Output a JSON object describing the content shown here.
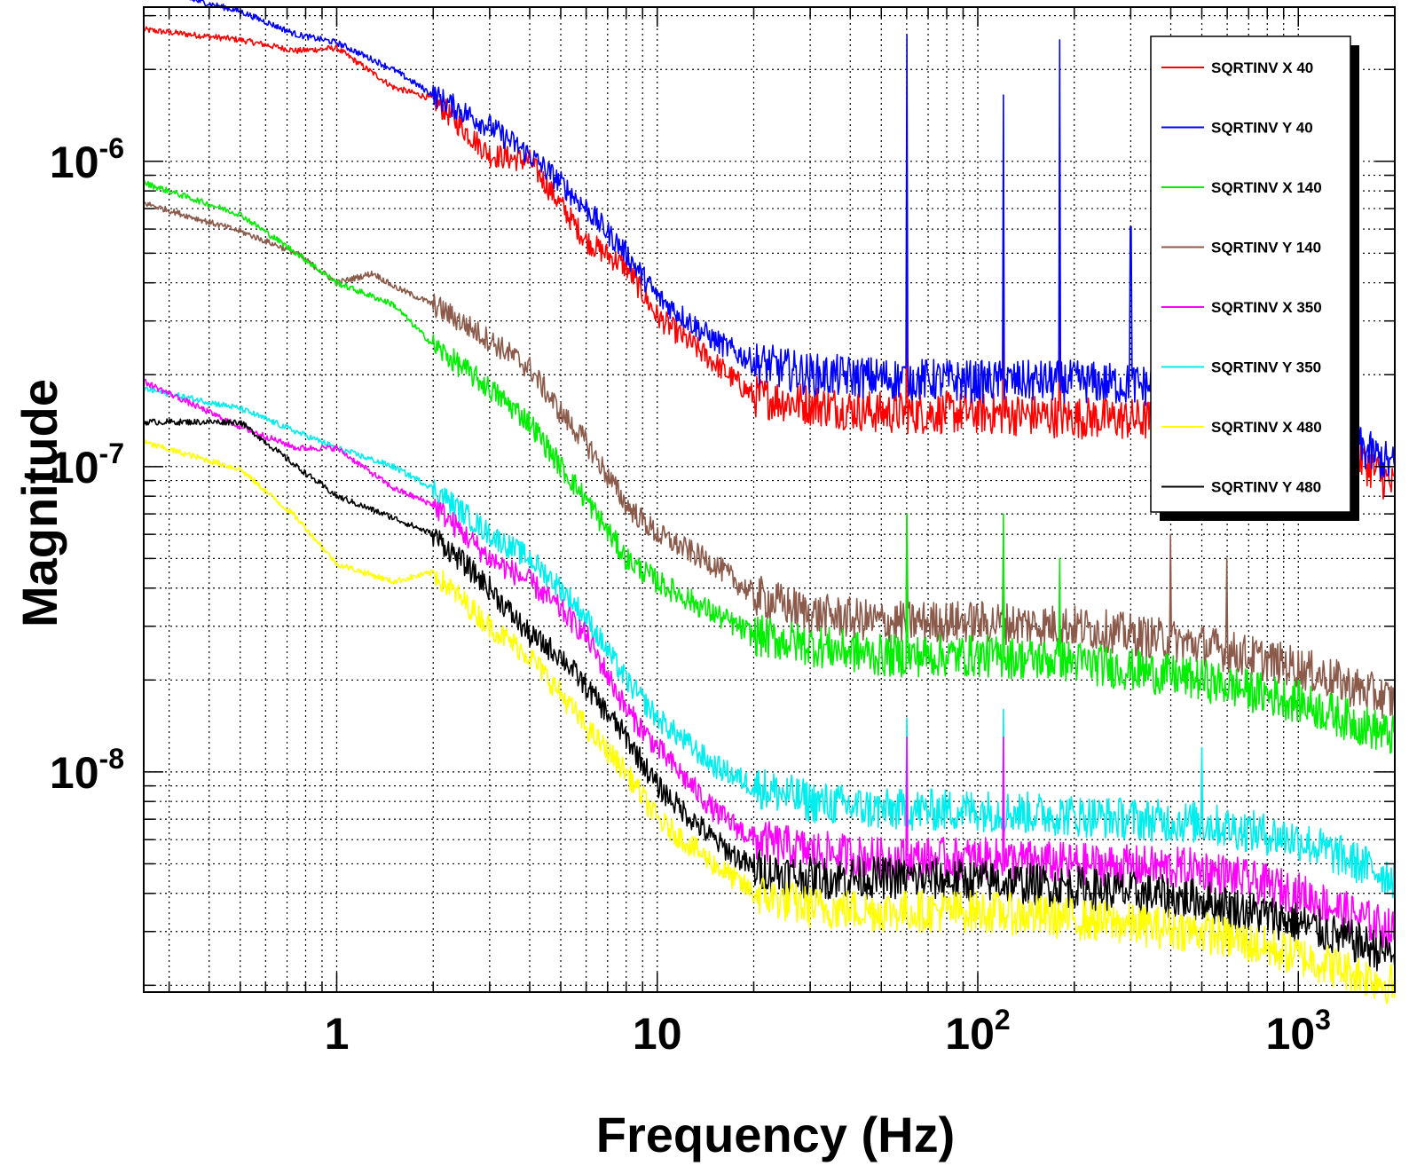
{
  "chart_data": {
    "type": "line",
    "title": "",
    "xlabel": "Frequency (Hz)",
    "ylabel": "Magnitude",
    "x_scale": "log",
    "y_scale": "log",
    "xlim": [
      0.25,
      2000
    ],
    "ylim": [
      1.9e-09,
      3.2e-06
    ],
    "x_ticks": [
      {
        "value": 1,
        "label": "1"
      },
      {
        "value": 10,
        "label": "10"
      },
      {
        "value": 100,
        "label": "10",
        "exp": "2"
      },
      {
        "value": 1000,
        "label": "10",
        "exp": "3"
      }
    ],
    "y_ticks": [
      {
        "value": 1e-08,
        "label": "10",
        "exp": "-8"
      },
      {
        "value": 1e-07,
        "label": "10",
        "exp": "-7"
      },
      {
        "value": 1e-06,
        "label": "10",
        "exp": "-6"
      }
    ],
    "grid": true,
    "legend_position": "top-right",
    "series": [
      {
        "name": "SQRTINV X 40",
        "color": "#ff0000",
        "points": [
          [
            0.25,
            2.7e-06
          ],
          [
            0.5,
            2.5e-06
          ],
          [
            0.75,
            2.3e-06
          ],
          [
            1,
            2.35e-06
          ],
          [
            1.5,
            1.75e-06
          ],
          [
            2,
            1.6e-06
          ],
          [
            3,
            1.05e-06
          ],
          [
            4,
            1e-06
          ],
          [
            5,
            7.2e-07
          ],
          [
            6,
            5.5e-07
          ],
          [
            8,
            4.5e-07
          ],
          [
            10,
            3.1e-07
          ],
          [
            15,
            2.2e-07
          ],
          [
            20,
            1.7e-07
          ],
          [
            30,
            1.6e-07
          ],
          [
            50,
            1.5e-07
          ],
          [
            100,
            1.5e-07
          ],
          [
            200,
            1.45e-07
          ],
          [
            500,
            1.4e-07
          ],
          [
            1000,
            1.3e-07
          ],
          [
            1500,
            1.1e-07
          ],
          [
            2000,
            8.5e-08
          ]
        ],
        "peaks": [
          [
            60,
            7.5e-07
          ],
          [
            120,
            7.5e-07
          ],
          [
            180,
            3.8e-07
          ]
        ]
      },
      {
        "name": "SQRTINV Y 40",
        "color": "#0000ff",
        "points": [
          [
            0.25,
            3.7e-06
          ],
          [
            0.5,
            3.1e-06
          ],
          [
            0.75,
            2.6e-06
          ],
          [
            1,
            2.45e-06
          ],
          [
            1.5,
            2e-06
          ],
          [
            2,
            1.65e-06
          ],
          [
            3,
            1.3e-06
          ],
          [
            4,
            1.05e-06
          ],
          [
            5,
            8.5e-07
          ],
          [
            6,
            7e-07
          ],
          [
            8,
            5e-07
          ],
          [
            10,
            3.6e-07
          ],
          [
            15,
            2.6e-07
          ],
          [
            20,
            2.2e-07
          ],
          [
            30,
            2e-07
          ],
          [
            50,
            1.95e-07
          ],
          [
            100,
            1.9e-07
          ],
          [
            200,
            1.9e-07
          ],
          [
            500,
            1.8e-07
          ],
          [
            1000,
            1.5e-07
          ],
          [
            2000,
            1e-07
          ]
        ],
        "peaks": [
          [
            60,
            2.6e-06
          ],
          [
            120,
            1.65e-06
          ],
          [
            180,
            2.5e-06
          ],
          [
            300,
            6.1e-07
          ]
        ]
      },
      {
        "name": "SQRTINV X 140",
        "color": "#00ee00",
        "points": [
          [
            0.25,
            8.5e-07
          ],
          [
            0.5,
            6.7e-07
          ],
          [
            0.75,
            5e-07
          ],
          [
            1,
            4e-07
          ],
          [
            1.5,
            3.4e-07
          ],
          [
            2,
            2.5e-07
          ],
          [
            3,
            1.8e-07
          ],
          [
            4,
            1.4e-07
          ],
          [
            5,
            1e-07
          ],
          [
            6,
            7.8e-08
          ],
          [
            8,
            5e-08
          ],
          [
            10,
            4.2e-08
          ],
          [
            15,
            3.3e-08
          ],
          [
            20,
            2.8e-08
          ],
          [
            30,
            2.6e-08
          ],
          [
            50,
            2.4e-08
          ],
          [
            100,
            2.4e-08
          ],
          [
            200,
            2.3e-08
          ],
          [
            500,
            2e-08
          ],
          [
            1000,
            1.7e-08
          ],
          [
            2000,
            1.3e-08
          ]
        ],
        "peaks": [
          [
            60,
            7e-08
          ],
          [
            120,
            7e-08
          ],
          [
            180,
            5e-08
          ]
        ]
      },
      {
        "name": "SQRTINV Y 140",
        "color": "#8b5a4a",
        "points": [
          [
            0.25,
            7.3e-07
          ],
          [
            0.5,
            5.9e-07
          ],
          [
            0.75,
            5e-07
          ],
          [
            1,
            4e-07
          ],
          [
            1.3,
            4.3e-07
          ],
          [
            1.5,
            3.9e-07
          ],
          [
            2,
            3.4e-07
          ],
          [
            3,
            2.6e-07
          ],
          [
            4,
            2.1e-07
          ],
          [
            5,
            1.5e-07
          ],
          [
            6,
            1.2e-07
          ],
          [
            8,
            7.5e-08
          ],
          [
            10,
            6e-08
          ],
          [
            15,
            4.8e-08
          ],
          [
            20,
            3.8e-08
          ],
          [
            30,
            3.3e-08
          ],
          [
            50,
            3.1e-08
          ],
          [
            100,
            3.1e-08
          ],
          [
            200,
            3e-08
          ],
          [
            500,
            2.6e-08
          ],
          [
            1000,
            2.2e-08
          ],
          [
            2000,
            1.7e-08
          ]
        ],
        "peaks": [
          [
            60,
            7e-08
          ],
          [
            120,
            6e-08
          ],
          [
            400,
            6e-08
          ],
          [
            600,
            5e-08
          ]
        ]
      },
      {
        "name": "SQRTINV X 350",
        "color": "#ff00ff",
        "points": [
          [
            0.25,
            1.9e-07
          ],
          [
            0.5,
            1.35e-07
          ],
          [
            0.75,
            1.15e-07
          ],
          [
            1,
            1.15e-07
          ],
          [
            1.5,
            8.5e-08
          ],
          [
            2,
            7.5e-08
          ],
          [
            3,
            5e-08
          ],
          [
            4,
            4.2e-08
          ],
          [
            5,
            3.4e-08
          ],
          [
            6,
            2.8e-08
          ],
          [
            8,
            1.6e-08
          ],
          [
            10,
            1.2e-08
          ],
          [
            15,
            7.5e-09
          ],
          [
            20,
            6e-09
          ],
          [
            30,
            5.5e-09
          ],
          [
            50,
            5.2e-09
          ],
          [
            100,
            5.2e-09
          ],
          [
            200,
            5e-09
          ],
          [
            500,
            4.8e-09
          ],
          [
            1000,
            4e-09
          ],
          [
            2000,
            3e-09
          ]
        ],
        "peaks": [
          [
            60,
            1.3e-08
          ],
          [
            120,
            1.3e-08
          ]
        ]
      },
      {
        "name": "SQRTINV Y 350",
        "color": "#00eeee",
        "points": [
          [
            0.25,
            1.8e-07
          ],
          [
            0.5,
            1.55e-07
          ],
          [
            0.75,
            1.3e-07
          ],
          [
            1,
            1.15e-07
          ],
          [
            1.5,
            1e-07
          ],
          [
            2,
            8.5e-08
          ],
          [
            3,
            6e-08
          ],
          [
            4,
            5e-08
          ],
          [
            5,
            4e-08
          ],
          [
            6,
            3.2e-08
          ],
          [
            8,
            2e-08
          ],
          [
            10,
            1.5e-08
          ],
          [
            15,
            1.05e-08
          ],
          [
            20,
            9e-09
          ],
          [
            30,
            8e-09
          ],
          [
            50,
            7.5e-09
          ],
          [
            100,
            7.5e-09
          ],
          [
            200,
            7.2e-09
          ],
          [
            500,
            6.8e-09
          ],
          [
            1000,
            6e-09
          ],
          [
            2000,
            4.5e-09
          ]
        ],
        "peaks": [
          [
            60,
            1.5e-08
          ],
          [
            120,
            1.6e-08
          ],
          [
            500,
            1.2e-08
          ]
        ]
      },
      {
        "name": "SQRTINV X 480",
        "color": "#ffff00",
        "points": [
          [
            0.25,
            1.2e-07
          ],
          [
            0.5,
            9.8e-08
          ],
          [
            0.75,
            6.8e-08
          ],
          [
            1,
            4.8e-08
          ],
          [
            1.5,
            4.2e-08
          ],
          [
            2,
            4.5e-08
          ],
          [
            3,
            3e-08
          ],
          [
            4,
            2.4e-08
          ],
          [
            5,
            1.8e-08
          ],
          [
            6,
            1.4e-08
          ],
          [
            8,
            1e-08
          ],
          [
            10,
            7e-09
          ],
          [
            15,
            5e-09
          ],
          [
            20,
            4e-09
          ],
          [
            30,
            3.6e-09
          ],
          [
            50,
            3.5e-09
          ],
          [
            100,
            3.5e-09
          ],
          [
            200,
            3.3e-09
          ],
          [
            500,
            3e-09
          ],
          [
            1000,
            2.5e-09
          ],
          [
            2000,
            2e-09
          ]
        ],
        "peaks": []
      },
      {
        "name": "SQRTINV Y 480",
        "color": "#000000",
        "points": [
          [
            0.25,
            1.4e-07
          ],
          [
            0.5,
            1.4e-07
          ],
          [
            0.75,
            1e-07
          ],
          [
            1,
            8e-08
          ],
          [
            1.5,
            6.8e-08
          ],
          [
            2,
            6e-08
          ],
          [
            3,
            4e-08
          ],
          [
            4,
            2.8e-08
          ],
          [
            5,
            2.4e-08
          ],
          [
            6,
            1.9e-08
          ],
          [
            8,
            1.3e-08
          ],
          [
            10,
            9e-09
          ],
          [
            15,
            6e-09
          ],
          [
            20,
            4.8e-09
          ],
          [
            30,
            4.5e-09
          ],
          [
            50,
            4.5e-09
          ],
          [
            100,
            4.4e-09
          ],
          [
            200,
            4.2e-09
          ],
          [
            500,
            3.8e-09
          ],
          [
            1000,
            3.2e-09
          ],
          [
            2000,
            2.5e-09
          ]
        ],
        "peaks": []
      }
    ]
  }
}
